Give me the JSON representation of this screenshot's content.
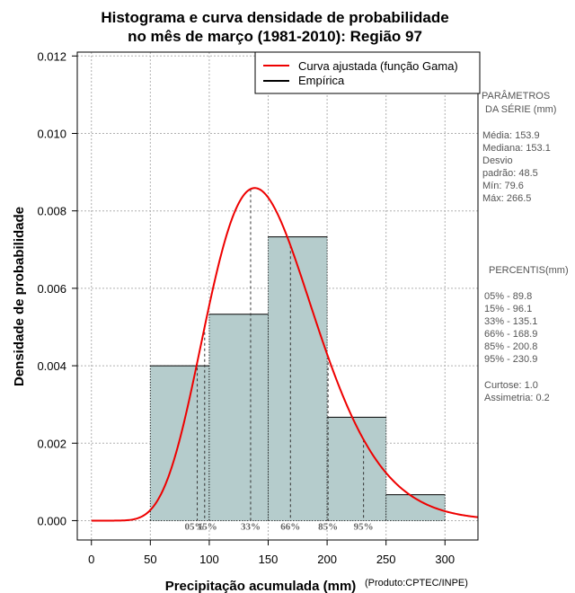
{
  "chart_data": {
    "type": "bar",
    "title_line1": "Histograma e curva densidade de probabilidade",
    "title_line2": "no mês de março (1981-2010): Região 97",
    "xlabel": "Precipitação acumulada (mm)",
    "ylabel": "Densidade de probabilidade",
    "credit": "(Produto:CPTEC/INPE)",
    "xlim": [
      -12,
      328
    ],
    "ylim": [
      -0.0005,
      0.0121
    ],
    "x_ticks": [
      0,
      50,
      100,
      150,
      200,
      250,
      300
    ],
    "y_ticks": [
      0.0,
      0.002,
      0.004,
      0.006,
      0.008,
      0.01,
      0.012
    ],
    "y_tick_labels": [
      "0.000",
      "0.002",
      "0.004",
      "0.006",
      "0.008",
      "0.010",
      "0.012"
    ],
    "grid": true,
    "histogram": {
      "bins": [
        [
          50,
          100
        ],
        [
          100,
          150
        ],
        [
          150,
          200
        ],
        [
          200,
          250
        ],
        [
          250,
          300
        ]
      ],
      "values": [
        0.004,
        0.00533,
        0.00733,
        0.00267,
        0.00067
      ],
      "fill_color": "#b5cccc",
      "edge_color": "#000000"
    },
    "gamma_curve": {
      "name": "Curva ajustada (função Gama)",
      "color": "#ee0000",
      "shape": 10.07,
      "scale": 15.28,
      "x_range": [
        0,
        328
      ]
    },
    "legend": {
      "position": "top-right",
      "entries": [
        {
          "label": "Curva ajustada (função Gama)",
          "color": "#ee0000"
        },
        {
          "label": "Empírica",
          "color": "#000000"
        }
      ]
    },
    "percentiles": [
      {
        "label": "05%",
        "value": 89.8
      },
      {
        "label": "15%",
        "value": 96.1
      },
      {
        "label": "33%",
        "value": 135.1
      },
      {
        "label": "66%",
        "value": 168.9
      },
      {
        "label": "85%",
        "value": 200.8
      },
      {
        "label": "95%",
        "value": 230.9
      }
    ]
  },
  "side_panel": {
    "params_title_1": "PARÂMETROS",
    "params_title_2": "DA SÉRIE (mm)",
    "media": "Média:  153.9",
    "mediana": "Mediana:  153.1",
    "desvio_1": "Desvio",
    "desvio_2": "padrão:  48.5",
    "min": "Mín:  79.6",
    "max": "Máx:  266.5",
    "percentis_title": "PERCENTIS(mm)",
    "p05": "05% -  89.8",
    "p15": "15% -  96.1",
    "p33": "33% -  135.1",
    "p66": "66% -  168.9",
    "p85": "85% -  200.8",
    "p95": "95% -  230.9",
    "curtose": "Curtose:  1.0",
    "assimetria": "Assimetria:  0.2"
  }
}
